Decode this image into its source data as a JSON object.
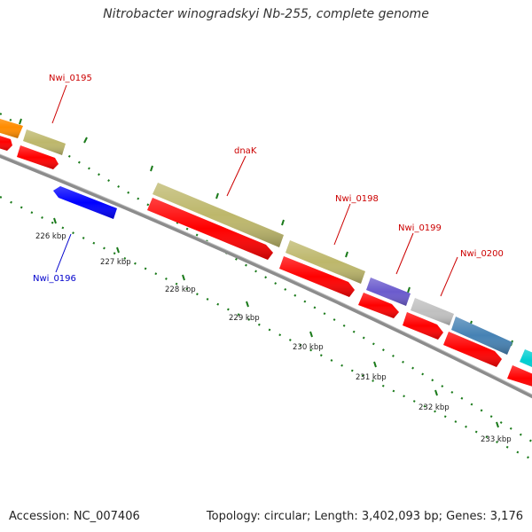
{
  "title": "Nitrobacter winogradskyi Nb-255, complete genome",
  "footer": {
    "accession": "Accession: NC_007406",
    "summary": "Topology: circular; Length: 3,402,093 bp; Genes: 3,176"
  },
  "scale_labels": [
    "226 kbp",
    "227 kbp",
    "228 kbp",
    "229 kbp",
    "230 kbp",
    "231 kbp",
    "232 kbp",
    "233 kbp"
  ],
  "gene_labels": [
    {
      "text": "Nwi_0195",
      "color": "#cc0000"
    },
    {
      "text": "dnaK",
      "color": "#cc0000"
    },
    {
      "text": "Nwi_0198",
      "color": "#cc0000"
    },
    {
      "text": "Nwi_0199",
      "color": "#cc0000"
    },
    {
      "text": "Nwi_0200",
      "color": "#cc0000"
    },
    {
      "text": "Nwi_0196",
      "color": "#0000cc"
    }
  ],
  "colors": {
    "backbone": "#8c8c8c",
    "tick": "#1a7a1a",
    "cds": "#ff0000",
    "khaki": "#bdb76b",
    "blue": "#0000ff",
    "orange": "#ff8c00",
    "slateblue": "#6a5acd",
    "silver": "#c0c0c0",
    "steelblue": "#4682b4",
    "cyan": "#00ced1"
  }
}
